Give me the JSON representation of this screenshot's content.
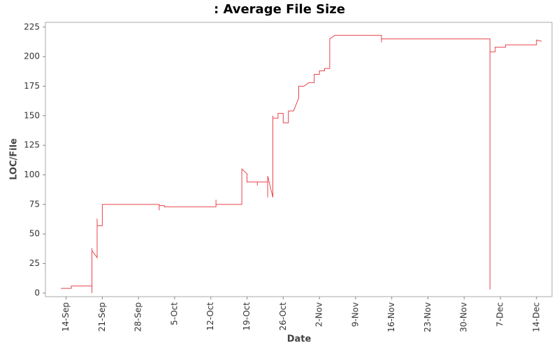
{
  "chart_data": {
    "type": "line",
    "title": ": Average File Size",
    "x_label": "Date",
    "y_label": "LOC/File",
    "color": "#e8434b",
    "step": true,
    "x": [
      "13-Sep",
      "15-Sep",
      "15-Sep",
      "19-Sep",
      "19-Sep",
      "19-Sep",
      "19-Sep",
      "20-Sep",
      "20-Sep",
      "20-Sep",
      "21-Sep",
      "21-Sep",
      "2-Oct",
      "2-Oct",
      "2-Oct",
      "3-Oct",
      "3-Oct",
      "13-Oct",
      "13-Oct",
      "13-Oct",
      "18-Oct",
      "18-Oct",
      "19-Oct",
      "19-Oct",
      "21-Oct",
      "21-Oct",
      "21-Oct",
      "23-Oct",
      "23-Oct",
      "23-Oct",
      "24-Oct",
      "24-Oct",
      "24-Oct",
      "25-Oct",
      "25-Oct",
      "26-Oct",
      "26-Oct",
      "27-Oct",
      "27-Oct",
      "28-Oct",
      "29-Oct",
      "29-Oct",
      "30-Oct",
      "31-Oct",
      "1-Nov",
      "1-Nov",
      "2-Nov",
      "2-Nov",
      "3-Nov",
      "3-Nov",
      "4-Nov",
      "4-Nov",
      "4-Nov",
      "5-Nov",
      "14-Nov",
      "14-Nov",
      "14-Nov",
      "5-Dec",
      "5-Dec",
      "5-Dec",
      "5-Dec",
      "6-Dec",
      "6-Dec",
      "7-Dec",
      "8-Dec",
      "8-Dec",
      "14-Dec",
      "14-Dec",
      "15-Dec"
    ],
    "values": [
      4,
      4,
      6,
      6,
      0,
      38,
      36,
      30,
      63,
      57,
      57,
      75,
      75,
      70,
      74,
      74,
      73,
      73,
      79,
      75,
      75,
      105,
      101,
      94,
      94,
      91,
      94,
      94,
      81,
      99,
      81,
      150,
      148,
      148,
      152,
      152,
      144,
      144,
      154,
      154,
      165,
      175,
      175,
      178,
      178,
      185,
      185,
      188,
      188,
      190,
      190,
      205,
      215,
      218,
      218,
      212,
      215,
      215,
      3,
      200,
      204,
      204,
      208,
      208,
      208,
      210,
      210,
      214,
      213
    ],
    "xlim": [
      "10-Sep",
      "17-Dec"
    ],
    "xticks": [
      "14-Sep",
      "21-Sep",
      "28-Sep",
      "5-Oct",
      "12-Oct",
      "19-Oct",
      "26-Oct",
      "2-Nov",
      "9-Nov",
      "16-Nov",
      "23-Nov",
      "30-Nov",
      "7-Dec",
      "14-Dec"
    ],
    "ylim": [
      -3,
      229
    ],
    "yticks": [
      0,
      25,
      50,
      75,
      100,
      125,
      150,
      175,
      200,
      225
    ]
  }
}
